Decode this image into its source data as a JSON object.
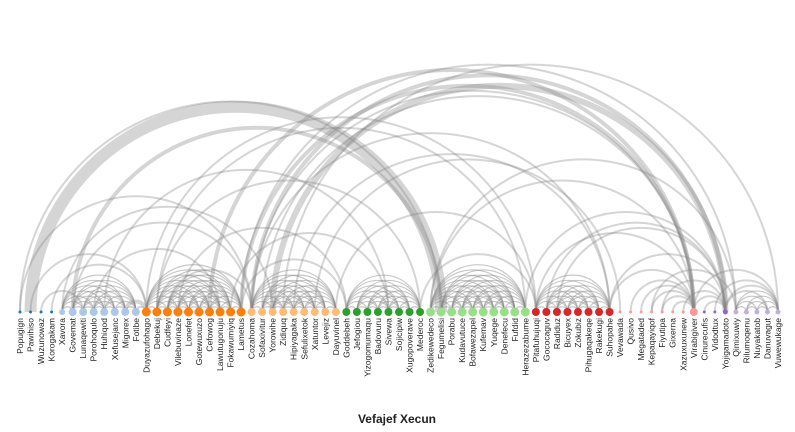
{
  "chart_data": {
    "type": "arc",
    "title": "Vefajef Xecun",
    "nodes": [
      {
        "name": "Popugign",
        "group": 0,
        "color": "#1f77b4",
        "size": 2
      },
      {
        "name": "Pawihiso",
        "group": 0,
        "color": "#1f77b4",
        "size": 2
      },
      {
        "name": "Wuzunowaz",
        "group": 0,
        "color": "#1f77b4",
        "size": 2
      },
      {
        "name": "Korogakam",
        "group": 0,
        "color": "#1f77b4",
        "size": 2
      },
      {
        "name": "Xavora",
        "group": 1,
        "color": "#aec7e8",
        "size": 6
      },
      {
        "name": "Govemat",
        "group": 1,
        "color": "#aec7e8",
        "size": 8
      },
      {
        "name": "Lunaqewiti",
        "group": 1,
        "color": "#aec7e8",
        "size": 8
      },
      {
        "name": "Porohoqulo",
        "group": 1,
        "color": "#aec7e8",
        "size": 8
      },
      {
        "name": "Huhiqod",
        "group": 1,
        "color": "#aec7e8",
        "size": 8
      },
      {
        "name": "Xefusejanc",
        "group": 1,
        "color": "#aec7e8",
        "size": 8
      },
      {
        "name": "Migorex",
        "group": 1,
        "color": "#aec7e8",
        "size": 8
      },
      {
        "name": "Fotibe",
        "group": 1,
        "color": "#aec7e8",
        "size": 8
      },
      {
        "name": "Duyazufohago",
        "group": 2,
        "color": "#ff7f0e",
        "size": 9
      },
      {
        "name": "Debekuj",
        "group": 2,
        "color": "#ff7f0e",
        "size": 9
      },
      {
        "name": "Cudfeyi",
        "group": 2,
        "color": "#ff7f0e",
        "size": 9
      },
      {
        "name": "Vilebuvinaze",
        "group": 2,
        "color": "#ff7f0e",
        "size": 9
      },
      {
        "name": "Lonefet",
        "group": 2,
        "color": "#ff7f0e",
        "size": 9
      },
      {
        "name": "Gotewuxuzo",
        "group": 2,
        "color": "#ff7f0e",
        "size": 9
      },
      {
        "name": "Cefowog",
        "group": 2,
        "color": "#ff7f0e",
        "size": 9
      },
      {
        "name": "Lawutugonuju",
        "group": 2,
        "color": "#ff7f0e",
        "size": 9
      },
      {
        "name": "Fokawumiyiq",
        "group": 2,
        "color": "#ff7f0e",
        "size": 9
      },
      {
        "name": "Lametus",
        "group": 2,
        "color": "#ff7f0e",
        "size": 9
      },
      {
        "name": "Cozahoma",
        "group": 3,
        "color": "#ffbb78",
        "size": 8
      },
      {
        "name": "Sofaxivitur",
        "group": 3,
        "color": "#ffbb78",
        "size": 8
      },
      {
        "name": "Yorowihe",
        "group": 3,
        "color": "#ffbb78",
        "size": 8
      },
      {
        "name": "Zidiquq",
        "group": 3,
        "color": "#ffbb78",
        "size": 8
      },
      {
        "name": "Hipiyagaka",
        "group": 3,
        "color": "#ffbb78",
        "size": 8
      },
      {
        "name": "Sefulixetok",
        "group": 3,
        "color": "#ffbb78",
        "size": 8
      },
      {
        "name": "Xatuntor",
        "group": 3,
        "color": "#ffbb78",
        "size": 8
      },
      {
        "name": "Levejiz",
        "group": 3,
        "color": "#ffbb78",
        "size": 8
      },
      {
        "name": "Dayuvinel",
        "group": 3,
        "color": "#ffbb78",
        "size": 8
      },
      {
        "name": "Goddebeh",
        "group": 4,
        "color": "#2ca02c",
        "size": 8
      },
      {
        "name": "Jefogiou",
        "group": 4,
        "color": "#2ca02c",
        "size": 8
      },
      {
        "name": "Yizogomumaqu",
        "group": 4,
        "color": "#2ca02c",
        "size": 8
      },
      {
        "name": "Badovuru",
        "group": 4,
        "color": "#2ca02c",
        "size": 8
      },
      {
        "name": "Sivewa",
        "group": 4,
        "color": "#2ca02c",
        "size": 8
      },
      {
        "name": "Sojicipiw",
        "group": 4,
        "color": "#2ca02c",
        "size": 8
      },
      {
        "name": "Xugopoverave",
        "group": 4,
        "color": "#2ca02c",
        "size": 8
      },
      {
        "name": "Mederoc",
        "group": 4,
        "color": "#2ca02c",
        "size": 8
      },
      {
        "name": "Zedikewedeco",
        "group": 5,
        "color": "#98df8a",
        "size": 9
      },
      {
        "name": "Fegumelisi",
        "group": 5,
        "color": "#98df8a",
        "size": 9
      },
      {
        "name": "Porabu",
        "group": 5,
        "color": "#98df8a",
        "size": 9
      },
      {
        "name": "Kudavutuce",
        "group": 5,
        "color": "#98df8a",
        "size": 9
      },
      {
        "name": "Bofawezapel",
        "group": 5,
        "color": "#98df8a",
        "size": 9
      },
      {
        "name": "Kufemav",
        "group": 5,
        "color": "#98df8a",
        "size": 9
      },
      {
        "name": "Yuqege",
        "group": 5,
        "color": "#98df8a",
        "size": 9
      },
      {
        "name": "Denefecu",
        "group": 5,
        "color": "#98df8a",
        "size": 9
      },
      {
        "name": "Fufdid",
        "group": 5,
        "color": "#98df8a",
        "size": 9
      },
      {
        "name": "Herazezabume",
        "group": 5,
        "color": "#98df8a",
        "size": 9
      },
      {
        "name": "Pitafuhujuqi",
        "group": 6,
        "color": "#d62728",
        "size": 8
      },
      {
        "name": "Gococaguv",
        "group": 6,
        "color": "#d62728",
        "size": 8
      },
      {
        "name": "Radiduz",
        "group": 6,
        "color": "#d62728",
        "size": 8
      },
      {
        "name": "Bicuyex",
        "group": 6,
        "color": "#d62728",
        "size": 8
      },
      {
        "name": "Zokubiz",
        "group": 6,
        "color": "#d62728",
        "size": 8
      },
      {
        "name": "Pihugaqakeqe",
        "group": 6,
        "color": "#d62728",
        "size": 8
      },
      {
        "name": "Rakekugi",
        "group": 6,
        "color": "#d62728",
        "size": 8
      },
      {
        "name": "Suhopahe",
        "group": 6,
        "color": "#d62728",
        "size": 8
      },
      {
        "name": "Vevawada",
        "group": 7,
        "color": "#ff9896",
        "size": 2
      },
      {
        "name": "Qusivo",
        "group": 7,
        "color": "#ff9896",
        "size": 2
      },
      {
        "name": "Megataded",
        "group": 7,
        "color": "#ff9896",
        "size": 2
      },
      {
        "name": "Kepaqayiqof",
        "group": 7,
        "color": "#ff9896",
        "size": 2
      },
      {
        "name": "Fiyutipa",
        "group": 7,
        "color": "#ff9896",
        "size": 2
      },
      {
        "name": "Gixerna",
        "group": 7,
        "color": "#ff9896",
        "size": 2
      },
      {
        "name": "Xazuxuxunew",
        "group": 7,
        "color": "#ff9896",
        "size": 2
      },
      {
        "name": "Virabigiver",
        "group": 7,
        "color": "#ff9896",
        "size": 8
      },
      {
        "name": "Cinurecufis",
        "group": 8,
        "color": "#9467bd",
        "size": 2
      },
      {
        "name": "Vidodtux",
        "group": 8,
        "color": "#9467bd",
        "size": 2
      },
      {
        "name": "Yojigamadoto",
        "group": 8,
        "color": "#9467bd",
        "size": 5
      },
      {
        "name": "Qimixuwiy",
        "group": 9,
        "color": "#c5b0d5",
        "size": 5
      },
      {
        "name": "Rilumoqenu",
        "group": 9,
        "color": "#c5b0d5",
        "size": 5
      },
      {
        "name": "Nuyakatob",
        "group": 9,
        "color": "#c5b0d5",
        "size": 5
      },
      {
        "name": "Danuvagut",
        "group": 9,
        "color": "#c5b0d5",
        "size": 5
      },
      {
        "name": "Vuwewukage",
        "group": 9,
        "color": "#c5b0d5",
        "size": 5
      }
    ],
    "cluster_ranges": [
      [
        4,
        11
      ],
      [
        12,
        21
      ],
      [
        22,
        30
      ],
      [
        31,
        38
      ],
      [
        39,
        48
      ],
      [
        49,
        56
      ],
      [
        68,
        72
      ]
    ],
    "links": [
      {
        "source": 0,
        "target": 22,
        "value": 1
      },
      {
        "source": 0,
        "target": 40,
        "value": 1
      },
      {
        "source": 1,
        "target": 12,
        "value": 1
      },
      {
        "source": 1,
        "target": 40,
        "value": 6
      },
      {
        "source": 2,
        "target": 6,
        "value": 1
      },
      {
        "source": 3,
        "target": 12,
        "value": 1
      },
      {
        "source": 4,
        "target": 24,
        "value": 1
      },
      {
        "source": 5,
        "target": 40,
        "value": 2
      },
      {
        "source": 5,
        "target": 22,
        "value": 1
      },
      {
        "source": 7,
        "target": 19,
        "value": 1
      },
      {
        "source": 8,
        "target": 35,
        "value": 1
      },
      {
        "source": 10,
        "target": 12,
        "value": 2
      },
      {
        "source": 11,
        "target": 12,
        "value": 1
      },
      {
        "source": 12,
        "target": 49,
        "value": 1
      },
      {
        "source": 13,
        "target": 38,
        "value": 1
      },
      {
        "source": 13,
        "target": 48,
        "value": 1
      },
      {
        "source": 14,
        "target": 22,
        "value": 1
      },
      {
        "source": 15,
        "target": 31,
        "value": 1
      },
      {
        "source": 18,
        "target": 64,
        "value": 2
      },
      {
        "source": 20,
        "target": 35,
        "value": 1
      },
      {
        "source": 21,
        "target": 31,
        "value": 1
      },
      {
        "source": 21,
        "target": 68,
        "value": 1
      },
      {
        "source": 21,
        "target": 64,
        "value": 2
      },
      {
        "source": 22,
        "target": 64,
        "value": 1
      },
      {
        "source": 22,
        "target": 67,
        "value": 2
      },
      {
        "source": 22,
        "target": 56,
        "value": 1
      },
      {
        "source": 23,
        "target": 64,
        "value": 1
      },
      {
        "source": 24,
        "target": 67,
        "value": 3
      },
      {
        "source": 25,
        "target": 72,
        "value": 1
      },
      {
        "source": 26,
        "target": 56,
        "value": 1
      },
      {
        "source": 28,
        "target": 57,
        "value": 1
      },
      {
        "source": 30,
        "target": 49,
        "value": 1
      },
      {
        "source": 38,
        "target": 49,
        "value": 1
      },
      {
        "source": 39,
        "target": 68,
        "value": 1
      },
      {
        "source": 39,
        "target": 64,
        "value": 1
      },
      {
        "source": 48,
        "target": 67,
        "value": 1
      },
      {
        "source": 49,
        "target": 64,
        "value": 1
      },
      {
        "source": 50,
        "target": 67,
        "value": 1
      },
      {
        "source": 51,
        "target": 67,
        "value": 1
      },
      {
        "source": 56,
        "target": 64,
        "value": 1
      },
      {
        "source": 56,
        "target": 67,
        "value": 1
      },
      {
        "source": 58,
        "target": 64,
        "value": 1
      },
      {
        "source": 59,
        "target": 64,
        "value": 1
      },
      {
        "source": 60,
        "target": 64,
        "value": 1
      },
      {
        "source": 60,
        "target": 68,
        "value": 1
      },
      {
        "source": 61,
        "target": 64,
        "value": 1
      },
      {
        "source": 61,
        "target": 67,
        "value": 1
      },
      {
        "source": 62,
        "target": 64,
        "value": 1
      },
      {
        "source": 63,
        "target": 67,
        "value": 1
      },
      {
        "source": 64,
        "target": 67,
        "value": 1
      },
      {
        "source": 65,
        "target": 67,
        "value": 1
      },
      {
        "source": 66,
        "target": 72,
        "value": 1
      },
      {
        "source": 64,
        "target": 72,
        "value": 1
      },
      {
        "source": 67,
        "target": 72,
        "value": 1
      },
      {
        "source": 67,
        "target": 71,
        "value": 1
      }
    ],
    "link_color": "#888888"
  }
}
